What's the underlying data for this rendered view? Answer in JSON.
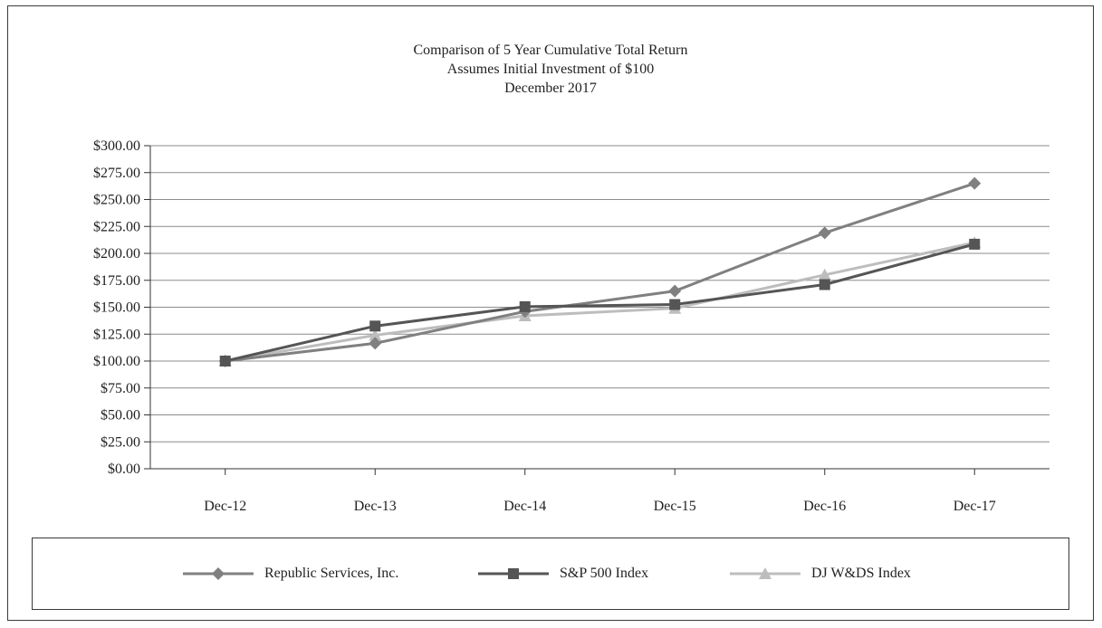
{
  "chart_data": {
    "type": "line",
    "title": "Comparison of 5 Year Cumulative Total Return",
    "subtitle": "Assumes Initial Investment of $100",
    "subtitle2": "December 2017",
    "categories": [
      "Dec-12",
      "Dec-13",
      "Dec-14",
      "Dec-15",
      "Dec-16",
      "Dec-17"
    ],
    "ylim": [
      0,
      300
    ],
    "yticks": [
      "$0.00",
      "$25.00",
      "$50.00",
      "$75.00",
      "$100.00",
      "$125.00",
      "$150.00",
      "$175.00",
      "$200.00",
      "$225.00",
      "$250.00",
      "$275.00",
      "$300.00"
    ],
    "grid": true,
    "legend_position": "bottom",
    "series": [
      {
        "name": "Republic Services, Inc.",
        "marker": "diamond",
        "color": "#808080",
        "values": [
          100,
          116.5,
          146,
          165,
          219,
          265
        ]
      },
      {
        "name": "S&P 500 Index",
        "marker": "square",
        "color": "#555555",
        "values": [
          100,
          132.5,
          150.5,
          152.5,
          171,
          208.5
        ]
      },
      {
        "name": "DJ W&DS Index",
        "marker": "triangle",
        "color": "#bdbdbd",
        "values": [
          100,
          124,
          142,
          149,
          180,
          210
        ]
      }
    ]
  }
}
